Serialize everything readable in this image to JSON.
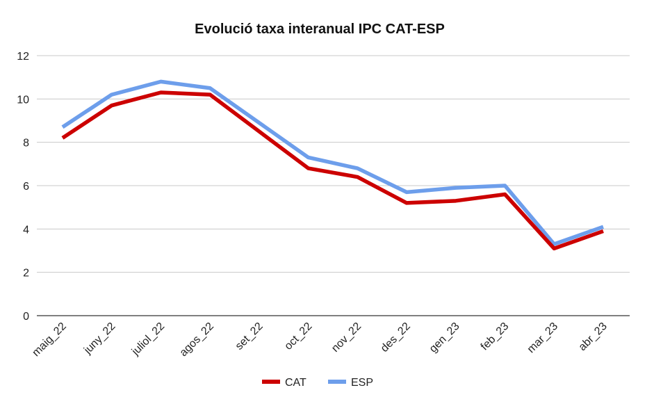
{
  "chart_data": {
    "type": "line",
    "title": "Evolució taxa interanual IPC CAT-ESP",
    "xlabel": "",
    "ylabel": "",
    "categories": [
      "maig_22",
      "juny_22",
      "juliol_22",
      "agos_22",
      "set_22",
      "oct_22",
      "nov_22",
      "des_22",
      "gen_23",
      "feb_23",
      "mar_23",
      "abr_23"
    ],
    "yticks": [
      "0",
      "2",
      "4",
      "6",
      "8",
      "10",
      "12"
    ],
    "ylim": [
      0,
      12
    ],
    "grid": true,
    "legend_position": "bottom",
    "series": [
      {
        "name": "CAT",
        "color": "#cc0000",
        "values": [
          8.2,
          9.7,
          10.3,
          10.2,
          8.5,
          6.8,
          6.4,
          5.2,
          5.3,
          5.6,
          3.1,
          3.9
        ]
      },
      {
        "name": "ESP",
        "color": "#6d9eeb",
        "values": [
          8.7,
          10.2,
          10.8,
          10.5,
          8.9,
          7.3,
          6.8,
          5.7,
          5.9,
          6.0,
          3.3,
          4.1
        ]
      }
    ]
  }
}
